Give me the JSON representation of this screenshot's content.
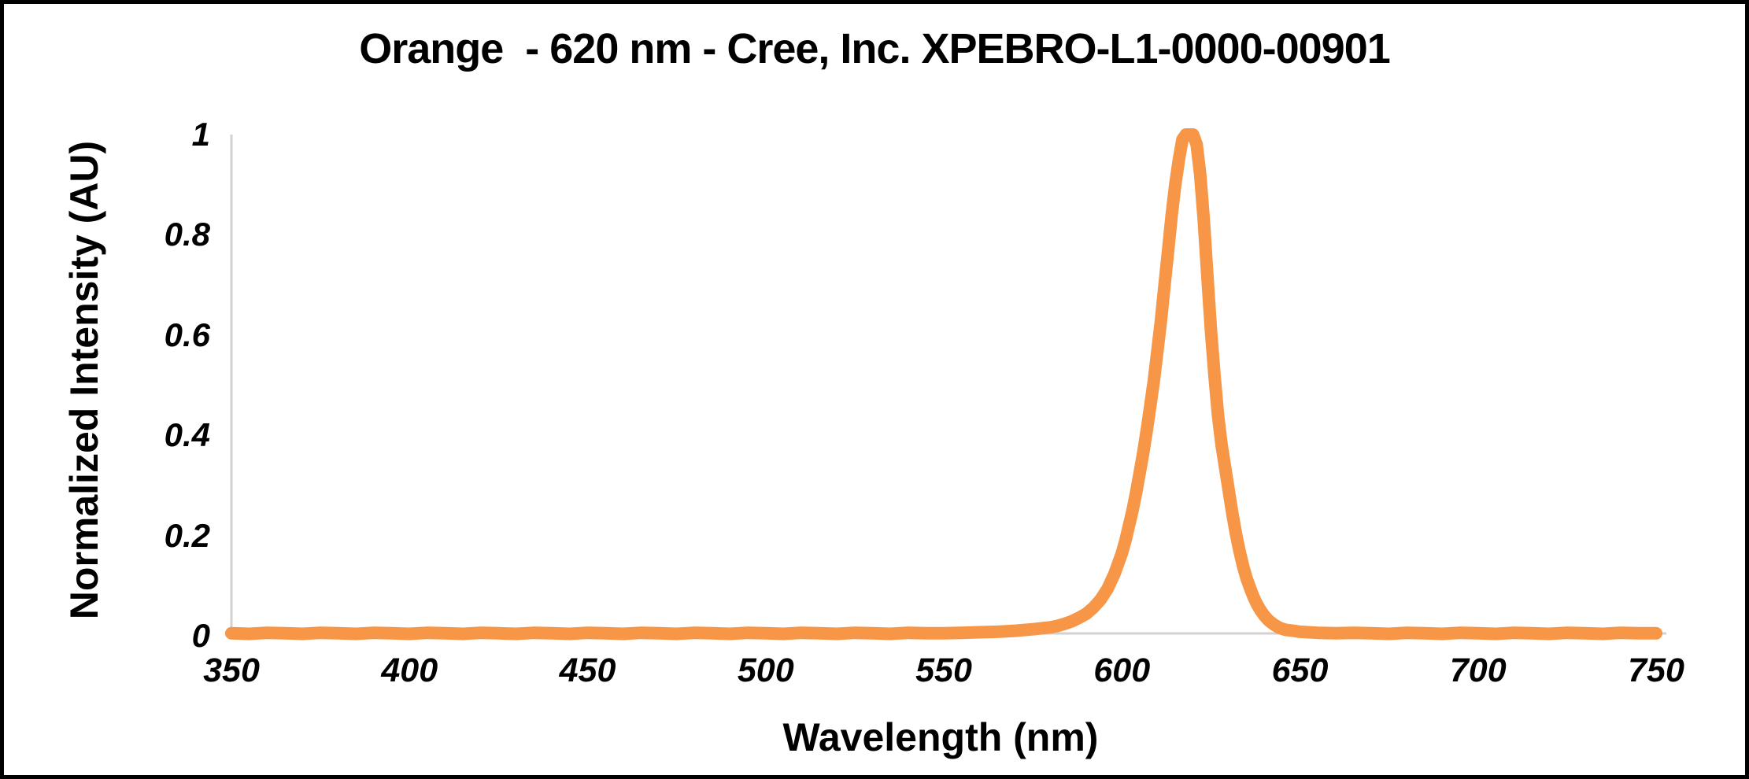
{
  "window": {
    "background_color": "#FFFFFF",
    "frame_border_color": "#000000"
  },
  "chart": {
    "title": "Orange  - 620 nm - Cree, Inc. XPEBRO-L1-0000-00901",
    "x_axis_label": "Wavelength (nm)",
    "y_axis_label": "Normalized Intensity (AU)"
  },
  "chart_data": {
    "type": "line",
    "title": "Orange  - 620 nm - Cree, Inc. XPEBRO-L1-0000-00901",
    "xlabel": "Wavelength (nm)",
    "ylabel": "Normalized Intensity (AU)",
    "xlim": [
      350,
      750
    ],
    "ylim": [
      0,
      1
    ],
    "x_ticks": [
      350,
      400,
      450,
      500,
      550,
      600,
      650,
      700,
      750
    ],
    "y_ticks": [
      0,
      0.2,
      0.4,
      0.6,
      0.8,
      1
    ],
    "y_tick_labels": [
      "0",
      "0.2",
      "0.4",
      "0.6",
      "0.8",
      "1"
    ],
    "grid": false,
    "legend_position": "none",
    "axis_line_color": "#D2D2D2",
    "series": [
      {
        "name": "Normalized intensity",
        "color": "#F79646",
        "line_width": 16,
        "peak_x": 619,
        "peak_y": 1.0,
        "points": [
          [
            350,
            0.005
          ],
          [
            355,
            0.004
          ],
          [
            360,
            0.006
          ],
          [
            365,
            0.005
          ],
          [
            370,
            0.004
          ],
          [
            375,
            0.006
          ],
          [
            380,
            0.005
          ],
          [
            385,
            0.004
          ],
          [
            390,
            0.006
          ],
          [
            395,
            0.005
          ],
          [
            400,
            0.004
          ],
          [
            405,
            0.006
          ],
          [
            410,
            0.005
          ],
          [
            415,
            0.004
          ],
          [
            420,
            0.006
          ],
          [
            425,
            0.005
          ],
          [
            430,
            0.004
          ],
          [
            435,
            0.006
          ],
          [
            440,
            0.005
          ],
          [
            445,
            0.004
          ],
          [
            450,
            0.006
          ],
          [
            455,
            0.005
          ],
          [
            460,
            0.004
          ],
          [
            465,
            0.006
          ],
          [
            470,
            0.005
          ],
          [
            475,
            0.004
          ],
          [
            480,
            0.006
          ],
          [
            485,
            0.005
          ],
          [
            490,
            0.004
          ],
          [
            495,
            0.006
          ],
          [
            500,
            0.005
          ],
          [
            505,
            0.004
          ],
          [
            510,
            0.006
          ],
          [
            515,
            0.005
          ],
          [
            520,
            0.004
          ],
          [
            525,
            0.006
          ],
          [
            530,
            0.005
          ],
          [
            535,
            0.004
          ],
          [
            540,
            0.006
          ],
          [
            545,
            0.005
          ],
          [
            550,
            0.005
          ],
          [
            555,
            0.006
          ],
          [
            560,
            0.007
          ],
          [
            565,
            0.008
          ],
          [
            570,
            0.01
          ],
          [
            575,
            0.013
          ],
          [
            580,
            0.017
          ],
          [
            582,
            0.02
          ],
          [
            584,
            0.024
          ],
          [
            586,
            0.029
          ],
          [
            588,
            0.036
          ],
          [
            590,
            0.044
          ],
          [
            592,
            0.056
          ],
          [
            594,
            0.072
          ],
          [
            596,
            0.094
          ],
          [
            598,
            0.125
          ],
          [
            600,
            0.165
          ],
          [
            601,
            0.19
          ],
          [
            602,
            0.22
          ],
          [
            603,
            0.25
          ],
          [
            604,
            0.285
          ],
          [
            605,
            0.325
          ],
          [
            606,
            0.365
          ],
          [
            607,
            0.41
          ],
          [
            608,
            0.46
          ],
          [
            609,
            0.51
          ],
          [
            610,
            0.57
          ],
          [
            611,
            0.63
          ],
          [
            612,
            0.7
          ],
          [
            613,
            0.77
          ],
          [
            614,
            0.84
          ],
          [
            615,
            0.9
          ],
          [
            616,
            0.95
          ],
          [
            617,
            0.99
          ],
          [
            618,
            1.0
          ],
          [
            619,
            1.0
          ],
          [
            620,
            1.0
          ],
          [
            621,
            0.98
          ],
          [
            622,
            0.92
          ],
          [
            623,
            0.83
          ],
          [
            624,
            0.72
          ],
          [
            625,
            0.61
          ],
          [
            626,
            0.52
          ],
          [
            627,
            0.44
          ],
          [
            628,
            0.38
          ],
          [
            629,
            0.335
          ],
          [
            630,
            0.29
          ],
          [
            631,
            0.245
          ],
          [
            632,
            0.205
          ],
          [
            633,
            0.17
          ],
          [
            634,
            0.14
          ],
          [
            635,
            0.115
          ],
          [
            636,
            0.095
          ],
          [
            637,
            0.077
          ],
          [
            638,
            0.062
          ],
          [
            639,
            0.05
          ],
          [
            640,
            0.04
          ],
          [
            641,
            0.032
          ],
          [
            642,
            0.026
          ],
          [
            643,
            0.021
          ],
          [
            644,
            0.017
          ],
          [
            645,
            0.014
          ],
          [
            646,
            0.012
          ],
          [
            648,
            0.01
          ],
          [
            650,
            0.008
          ],
          [
            655,
            0.006
          ],
          [
            660,
            0.005
          ],
          [
            665,
            0.006
          ],
          [
            670,
            0.005
          ],
          [
            675,
            0.004
          ],
          [
            680,
            0.006
          ],
          [
            685,
            0.005
          ],
          [
            690,
            0.004
          ],
          [
            695,
            0.006
          ],
          [
            700,
            0.005
          ],
          [
            705,
            0.004
          ],
          [
            710,
            0.006
          ],
          [
            715,
            0.005
          ],
          [
            720,
            0.004
          ],
          [
            725,
            0.006
          ],
          [
            730,
            0.005
          ],
          [
            735,
            0.004
          ],
          [
            740,
            0.006
          ],
          [
            745,
            0.005
          ],
          [
            750,
            0.005
          ]
        ]
      }
    ]
  }
}
